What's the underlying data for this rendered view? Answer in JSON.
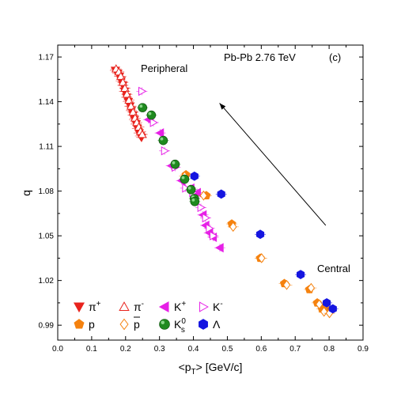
{
  "chart_data": {
    "type": "scatter",
    "title": "",
    "xlabel": "<p_T> [GeV/c]",
    "ylabel": "q",
    "xlim": [
      0.0,
      0.9
    ],
    "ylim": [
      0.98,
      1.178
    ],
    "xticks": [
      "0.0",
      "0.1",
      "0.2",
      "0.3",
      "0.4",
      "0.5",
      "0.6",
      "0.7",
      "0.8",
      "0.9"
    ],
    "yticks": [
      "0.99",
      "1.02",
      "1.05",
      "1.08",
      "1.11",
      "1.14",
      "1.17"
    ],
    "annotations": {
      "system": "Pb-Pb  2.76 TeV",
      "panel": "(c)",
      "peripheral": "Peripheral",
      "central": "Central"
    },
    "arrow": {
      "from": [
        0.79,
        1.057
      ],
      "to": [
        0.477,
        1.139
      ]
    },
    "legend": [
      {
        "name": "π⁺",
        "base": "π",
        "sup": "+",
        "marker": "tri-down",
        "filled": true,
        "color": "#e8231d"
      },
      {
        "name": "π⁻",
        "base": "π",
        "sup": "-",
        "marker": "tri-up",
        "filled": false,
        "color": "#e8231d"
      },
      {
        "name": "K⁺",
        "base": "K",
        "sup": "+",
        "marker": "tri-left",
        "filled": true,
        "color": "#e620e6"
      },
      {
        "name": "K⁻",
        "base": "K",
        "sup": "-",
        "marker": "tri-right",
        "filled": false,
        "color": "#e620e6"
      },
      {
        "name": "p",
        "base": "p",
        "sup": "",
        "marker": "pentagon",
        "filled": true,
        "color": "#f5820f"
      },
      {
        "name": "p̄",
        "base": "p",
        "sup": "",
        "bar": true,
        "marker": "diamond",
        "filled": false,
        "color": "#f5820f"
      },
      {
        "name": "K⁰s",
        "base": "K",
        "sup": "0",
        "sub": "s",
        "marker": "sphere",
        "filled": true,
        "color": "#1f8a1f"
      },
      {
        "name": "Λ",
        "base": "Λ",
        "sup": "",
        "marker": "hexagon",
        "filled": true,
        "color": "#1515e0"
      }
    ],
    "series": [
      {
        "name": "π⁺",
        "points": [
          [
            0.17,
            1.161
          ],
          [
            0.177,
            1.159
          ],
          [
            0.182,
            1.157
          ],
          [
            0.187,
            1.154
          ],
          [
            0.192,
            1.151
          ],
          [
            0.197,
            1.147
          ],
          [
            0.203,
            1.143
          ],
          [
            0.208,
            1.14
          ],
          [
            0.213,
            1.137
          ],
          [
            0.217,
            1.134
          ],
          [
            0.222,
            1.131
          ],
          [
            0.226,
            1.128
          ],
          [
            0.231,
            1.125
          ],
          [
            0.235,
            1.122
          ],
          [
            0.24,
            1.119
          ],
          [
            0.244,
            1.117
          ],
          [
            0.247,
            1.116
          ]
        ]
      },
      {
        "name": "π⁻",
        "points": [
          [
            0.172,
            1.162
          ],
          [
            0.18,
            1.16
          ],
          [
            0.186,
            1.157
          ],
          [
            0.192,
            1.153
          ],
          [
            0.198,
            1.149
          ],
          [
            0.204,
            1.145
          ],
          [
            0.21,
            1.141
          ],
          [
            0.216,
            1.137
          ],
          [
            0.222,
            1.133
          ],
          [
            0.228,
            1.129
          ],
          [
            0.233,
            1.126
          ],
          [
            0.239,
            1.123
          ],
          [
            0.244,
            1.12
          ],
          [
            0.249,
            1.118
          ]
        ]
      },
      {
        "name": "K⁺",
        "points": [
          [
            0.268,
            1.128
          ],
          [
            0.302,
            1.119
          ],
          [
            0.335,
            1.097
          ],
          [
            0.365,
            1.087
          ],
          [
            0.392,
            1.082
          ],
          [
            0.411,
            1.079
          ],
          [
            0.428,
            1.064
          ],
          [
            0.436,
            1.057
          ],
          [
            0.447,
            1.052
          ],
          [
            0.458,
            1.049
          ],
          [
            0.478,
            1.042
          ]
        ]
      },
      {
        "name": "K⁻",
        "points": [
          [
            0.248,
            1.147
          ],
          [
            0.282,
            1.126
          ],
          [
            0.315,
            1.107
          ],
          [
            0.346,
            1.096
          ],
          [
            0.377,
            1.082
          ],
          [
            0.398,
            1.079
          ],
          [
            0.422,
            1.069
          ],
          [
            0.436,
            1.062
          ],
          [
            0.447,
            1.055
          ],
          [
            0.458,
            1.05
          ]
        ]
      },
      {
        "name": "p",
        "points": [
          [
            0.378,
            1.091
          ],
          [
            0.438,
            1.077
          ],
          [
            0.513,
            1.058
          ],
          [
            0.597,
            1.035
          ],
          [
            0.668,
            1.018
          ],
          [
            0.742,
            1.014
          ],
          [
            0.765,
            1.005
          ],
          [
            0.779,
            1.001
          ],
          [
            0.795,
            1.0
          ]
        ]
      },
      {
        "name": "p̄",
        "points": [
          [
            0.374,
            1.09
          ],
          [
            0.43,
            1.077
          ],
          [
            0.517,
            1.056
          ],
          [
            0.601,
            1.035
          ],
          [
            0.675,
            1.017
          ],
          [
            0.747,
            1.015
          ],
          [
            0.771,
            1.004
          ],
          [
            0.785,
            0.999
          ],
          [
            0.801,
            0.998
          ]
        ]
      },
      {
        "name": "K⁰s",
        "points": [
          [
            0.25,
            1.136
          ],
          [
            0.276,
            1.131
          ],
          [
            0.311,
            1.114
          ],
          [
            0.346,
            1.098
          ],
          [
            0.374,
            1.088
          ],
          [
            0.393,
            1.081
          ],
          [
            0.403,
            1.075
          ],
          [
            0.404,
            1.073
          ]
        ]
      },
      {
        "name": "Λ",
        "points": [
          [
            0.403,
            1.09
          ],
          [
            0.482,
            1.078
          ],
          [
            0.597,
            1.051
          ],
          [
            0.716,
            1.024
          ],
          [
            0.793,
            1.005
          ],
          [
            0.811,
            1.001
          ]
        ]
      }
    ]
  }
}
